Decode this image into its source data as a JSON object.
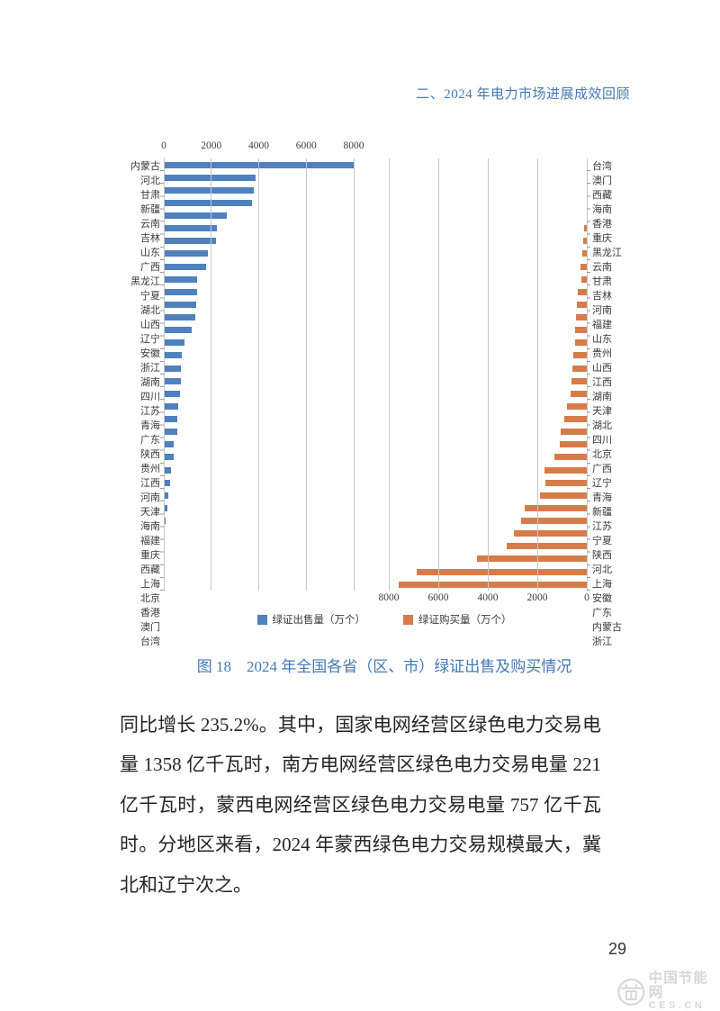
{
  "header": {
    "section_title": "二、2024 年电力市场进展成效回顾"
  },
  "colors": {
    "accent": "#4379b8",
    "sell_bar": "#4e81bd",
    "buy_bar": "#d67c4a",
    "gridline": "#c7c7c7",
    "watermark": "#d7d7d7"
  },
  "chart_data": {
    "type": "bar",
    "orientation": "horizontal",
    "title": "图 18　2024 年全国各省（区、市）绿证出售及购买情况",
    "unit": "万个",
    "xlim": [
      0,
      8000
    ],
    "axis_ticks": [
      0,
      2000,
      4000,
      6000,
      8000
    ],
    "grid": true,
    "legend_position": "bottom",
    "legend": [
      "绿证出售量（万个）",
      "绿证购买量（万个）"
    ],
    "series": [
      {
        "name": "绿证出售量（万个）",
        "side": "left",
        "axis_label_position": "top",
        "categories": [
          "内蒙古",
          "河北",
          "甘肃",
          "新疆",
          "云南",
          "吉林",
          "山东",
          "广西",
          "黑龙江",
          "宁夏",
          "湖北",
          "山西",
          "辽宁",
          "安徽",
          "浙江",
          "湖南",
          "四川",
          "江苏",
          "青海",
          "广东",
          "陕西",
          "贵州",
          "江西",
          "河南",
          "天津",
          "海南",
          "福建",
          "重庆",
          "西藏",
          "上海",
          "北京",
          "香港",
          "澳门",
          "台湾"
        ],
        "values": [
          8000,
          3850,
          3780,
          3730,
          2650,
          2240,
          2200,
          1850,
          1800,
          1400,
          1390,
          1360,
          1320,
          1180,
          880,
          770,
          730,
          710,
          700,
          610,
          560,
          550,
          430,
          410,
          290,
          250,
          175,
          155,
          70,
          25,
          15,
          0,
          0,
          0
        ]
      },
      {
        "name": "绿证购买量（万个）",
        "side": "right",
        "axis_label_position": "bottom",
        "axis_reversed": true,
        "categories": [
          "台湾",
          "澳门",
          "西藏",
          "海南",
          "香港",
          "重庆",
          "黑龙江",
          "云南",
          "甘肃",
          "吉林",
          "河南",
          "福建",
          "山东",
          "贵州",
          "山西",
          "江西",
          "湖南",
          "天津",
          "湖北",
          "四川",
          "北京",
          "广西",
          "辽宁",
          "青海",
          "新疆",
          "江苏",
          "宁夏",
          "陕西",
          "河北",
          "上海",
          "安徽",
          "广东",
          "内蒙古",
          "浙江"
        ],
        "values": [
          0,
          0,
          8,
          12,
          15,
          100,
          160,
          170,
          260,
          220,
          370,
          400,
          440,
          480,
          480,
          530,
          570,
          630,
          660,
          790,
          900,
          1050,
          1080,
          1320,
          1700,
          1680,
          1880,
          2500,
          2670,
          2930,
          3240,
          4430,
          6870,
          7600
        ]
      }
    ]
  },
  "figure": {
    "caption": "图 18　2024 年全国各省（区、市）绿证出售及购买情况"
  },
  "body": {
    "lines": [
      "同比增长 235.2%。其中，国家电网经营区绿色电力交易电",
      "量 1358 亿千瓦时，南方电网经营区绿色电力交易电量 221",
      "亿千瓦时，蒙西电网经营区绿色电力交易电量 757 亿千瓦",
      "时。分地区来看，2024 年蒙西绿色电力交易规模最大，冀",
      "北和辽宁次之。"
    ]
  },
  "footer": {
    "page_number": "29",
    "watermark_name": "中国节能网",
    "watermark_domain": "CES.CN"
  }
}
